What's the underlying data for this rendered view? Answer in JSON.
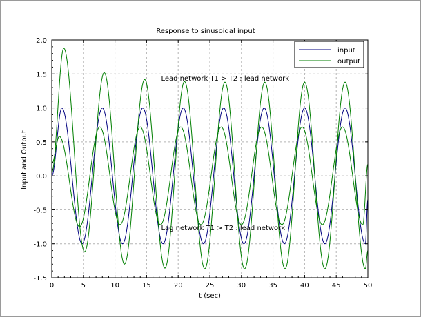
{
  "chart_data": {
    "type": "line",
    "title": "Response to sinusoidal input",
    "xlabel": "t (sec)",
    "ylabel": "Input and Output",
    "xlim": [
      0,
      50
    ],
    "ylim": [
      -1.5,
      2.0
    ],
    "xticks": [
      "0",
      "5",
      "10",
      "15",
      "20",
      "25",
      "30",
      "35",
      "40",
      "45",
      "50"
    ],
    "yticks": [
      "-1.5",
      "-1.0",
      "-0.5",
      "0.0",
      "0.5",
      "1.0",
      "1.5",
      "2.0"
    ],
    "grid": true,
    "legend_position": "top-right",
    "annotations": [
      {
        "text": "Lead network T1 > T2 : lead network",
        "x": 17.3,
        "y": 1.4
      },
      {
        "text": "Lag network T1 > T2 : lead network",
        "x": 17.3,
        "y": -0.8
      }
    ],
    "series": [
      {
        "name": "input",
        "color": "#00007f",
        "x": [
          0,
          1.6,
          4.8,
          8.0,
          11.2,
          14.4,
          17.6,
          20.8,
          24.0,
          27.2,
          30.4,
          33.6,
          36.8,
          40.0,
          43.2,
          46.4,
          49.6,
          50
        ],
        "values": [
          0,
          1.0,
          -1.0,
          1.0,
          -1.0,
          1.0,
          -1.0,
          1.0,
          -1.0,
          1.0,
          -1.0,
          1.0,
          -1.0,
          1.0,
          -1.0,
          1.0,
          -1.0,
          -0.35
        ]
      },
      {
        "name": "output",
        "color": "#007f00",
        "x": [
          0,
          1.9,
          5.2,
          8.3,
          11.5,
          14.7,
          17.9,
          21.0,
          24.2,
          27.4,
          30.5,
          33.7,
          36.9,
          40.0,
          43.2,
          46.4,
          49.6,
          50
        ],
        "values": [
          0.05,
          1.88,
          -1.12,
          1.52,
          -1.3,
          1.42,
          -1.36,
          1.39,
          -1.37,
          1.38,
          -1.37,
          1.38,
          -1.37,
          1.38,
          -1.37,
          1.38,
          -1.37,
          -1.1
        ]
      },
      {
        "name": "",
        "color": "#007f00",
        "x": [
          0,
          1.2,
          4.4,
          7.6,
          10.8,
          14.0,
          17.2,
          20.4,
          23.6,
          26.8,
          30.0,
          33.2,
          36.4,
          39.6,
          42.8,
          46.0,
          49.2,
          50
        ],
        "values": [
          0.18,
          0.58,
          -0.75,
          0.72,
          -0.72,
          0.72,
          -0.72,
          0.72,
          -0.72,
          0.72,
          -0.72,
          0.72,
          -0.72,
          0.72,
          -0.72,
          0.72,
          -0.72,
          0.17
        ]
      }
    ]
  }
}
